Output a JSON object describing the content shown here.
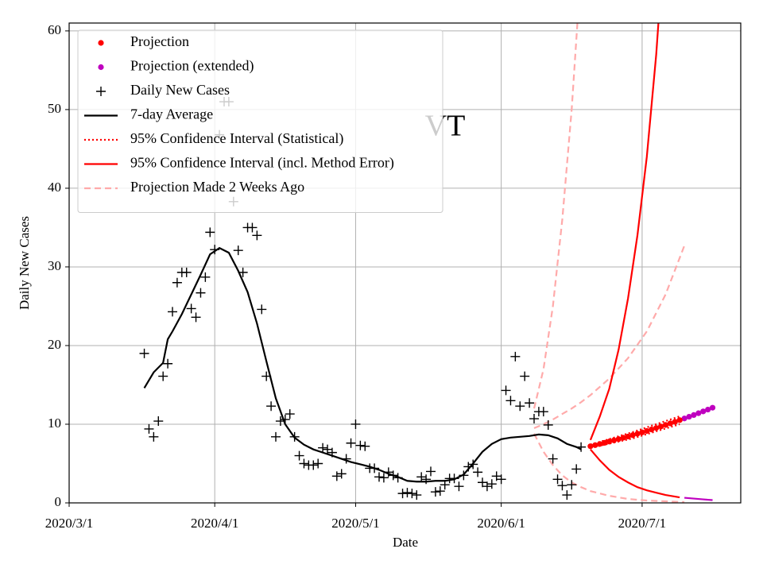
{
  "chart_data": {
    "type": "line",
    "title": "VT",
    "x_label": "Date",
    "y_label": "Daily New Cases",
    "xlim": [
      "2020-03-01",
      "2020-07-22"
    ],
    "xticks": [
      {
        "value": "2020-03-01",
        "label": "2020/3/1"
      },
      {
        "value": "2020-04-01",
        "label": "2020/4/1"
      },
      {
        "value": "2020-05-01",
        "label": "2020/5/1"
      },
      {
        "value": "2020-06-01",
        "label": "2020/6/1"
      },
      {
        "value": "2020-07-01",
        "label": "2020/7/1"
      }
    ],
    "ylim": [
      0,
      61
    ],
    "yticks": [
      0,
      10,
      20,
      30,
      40,
      50,
      60
    ],
    "grid": true,
    "legend": "upper left",
    "series": [
      {
        "name": "Projection",
        "type": "dots",
        "color": "#ff0000",
        "x": [
          "2020-06-20",
          "2020-06-21",
          "2020-06-22",
          "2020-06-23",
          "2020-06-24",
          "2020-06-25",
          "2020-06-26",
          "2020-06-27",
          "2020-06-28",
          "2020-06-29",
          "2020-06-30",
          "2020-07-01",
          "2020-07-02",
          "2020-07-03",
          "2020-07-04",
          "2020-07-05",
          "2020-07-06",
          "2020-07-07",
          "2020-07-08",
          "2020-07-09"
        ],
        "values": [
          7.2,
          7.34,
          7.49,
          7.64,
          7.8,
          7.95,
          8.11,
          8.28,
          8.44,
          8.61,
          8.79,
          8.96,
          9.14,
          9.33,
          9.52,
          9.71,
          9.91,
          10.11,
          10.31,
          10.52
        ]
      },
      {
        "name": "Projection (extended)",
        "type": "dots",
        "color": "#bf00bf",
        "x": [
          "2020-07-10",
          "2020-07-11",
          "2020-07-12",
          "2020-07-13",
          "2020-07-14",
          "2020-07-15",
          "2020-07-16"
        ],
        "values": [
          10.73,
          10.95,
          11.17,
          11.4,
          11.63,
          11.86,
          12.1
        ],
        "lower": [
          0.65,
          0.6,
          0.55,
          0.5,
          0.45,
          0.4,
          0.35
        ]
      },
      {
        "name": "Daily New Cases",
        "type": "plus",
        "color": "#000000",
        "x": [
          "2020-03-17",
          "2020-03-18",
          "2020-03-19",
          "2020-03-20",
          "2020-03-21",
          "2020-03-22",
          "2020-03-23",
          "2020-03-24",
          "2020-03-25",
          "2020-03-26",
          "2020-03-27",
          "2020-03-28",
          "2020-03-29",
          "2020-03-30",
          "2020-03-31",
          "2020-04-01",
          "2020-04-02",
          "2020-04-03",
          "2020-04-04",
          "2020-04-05",
          "2020-04-06",
          "2020-04-07",
          "2020-04-08",
          "2020-04-09",
          "2020-04-10",
          "2020-04-11",
          "2020-04-12",
          "2020-04-13",
          "2020-04-14",
          "2020-04-15",
          "2020-04-16",
          "2020-04-17",
          "2020-04-18",
          "2020-04-19",
          "2020-04-20",
          "2020-04-21",
          "2020-04-22",
          "2020-04-23",
          "2020-04-24",
          "2020-04-25",
          "2020-04-26",
          "2020-04-27",
          "2020-04-28",
          "2020-04-29",
          "2020-04-30",
          "2020-05-01",
          "2020-05-02",
          "2020-05-03",
          "2020-05-04",
          "2020-05-05",
          "2020-05-06",
          "2020-05-07",
          "2020-05-08",
          "2020-05-09",
          "2020-05-10",
          "2020-05-11",
          "2020-05-12",
          "2020-05-13",
          "2020-05-14",
          "2020-05-15",
          "2020-05-16",
          "2020-05-17",
          "2020-05-18",
          "2020-05-19",
          "2020-05-20",
          "2020-05-21",
          "2020-05-22",
          "2020-05-23",
          "2020-05-24",
          "2020-05-25",
          "2020-05-26",
          "2020-05-27",
          "2020-05-28",
          "2020-05-29",
          "2020-05-30",
          "2020-05-31",
          "2020-06-01",
          "2020-06-02",
          "2020-06-03",
          "2020-06-04",
          "2020-06-05",
          "2020-06-06",
          "2020-06-07",
          "2020-06-08",
          "2020-06-09",
          "2020-06-10",
          "2020-06-11",
          "2020-06-12",
          "2020-06-13",
          "2020-06-14",
          "2020-06-15",
          "2020-06-16",
          "2020-06-17",
          "2020-06-18"
        ],
        "values": [
          19.0,
          9.4,
          8.4,
          10.4,
          16.1,
          17.7,
          24.3,
          28.0,
          29.3,
          29.3,
          24.7,
          23.6,
          26.7,
          28.7,
          34.4,
          32.2,
          46.8,
          51.0,
          51.0,
          38.3,
          32.1,
          29.3,
          35.0,
          35.0,
          34.0,
          24.6,
          16.1,
          12.3,
          8.4,
          10.4,
          10.6,
          11.3,
          8.4,
          6.0,
          5.0,
          4.8,
          4.8,
          5.0,
          7.0,
          6.8,
          6.4,
          3.4,
          3.7,
          5.6,
          7.6,
          10.0,
          7.3,
          7.2,
          4.4,
          4.4,
          3.3,
          3.2,
          3.9,
          3.5,
          3.2,
          1.2,
          1.3,
          1.2,
          1.0,
          3.3,
          3.0,
          4.0,
          1.4,
          1.5,
          2.3,
          3.1,
          3.1,
          2.1,
          3.5,
          4.6,
          4.9,
          3.9,
          2.6,
          2.1,
          2.4,
          3.4,
          3.0,
          14.3,
          13.0,
          18.6,
          12.3,
          16.1,
          12.7,
          10.7,
          11.6,
          11.6,
          9.9,
          5.6,
          3.0,
          2.2,
          1.0,
          2.3,
          4.3,
          7.1
        ]
      },
      {
        "name": "7-day Average",
        "type": "line",
        "color": "#000000",
        "style": "solid",
        "x": [
          "2020-03-17",
          "2020-03-19",
          "2020-03-21",
          "2020-03-22",
          "2020-03-23",
          "2020-03-25",
          "2020-03-27",
          "2020-03-29",
          "2020-03-31",
          "2020-04-02",
          "2020-04-04",
          "2020-04-06",
          "2020-04-08",
          "2020-04-10",
          "2020-04-12",
          "2020-04-14",
          "2020-04-16",
          "2020-04-18",
          "2020-04-20",
          "2020-04-22",
          "2020-04-24",
          "2020-04-26",
          "2020-04-28",
          "2020-04-30",
          "2020-05-02",
          "2020-05-04",
          "2020-05-06",
          "2020-05-08",
          "2020-05-10",
          "2020-05-12",
          "2020-05-14",
          "2020-05-16",
          "2020-05-18",
          "2020-05-20",
          "2020-05-22",
          "2020-05-24",
          "2020-05-26",
          "2020-05-28",
          "2020-05-30",
          "2020-06-01",
          "2020-06-03",
          "2020-06-05",
          "2020-06-07",
          "2020-06-09",
          "2020-06-11",
          "2020-06-13",
          "2020-06-15",
          "2020-06-17",
          "2020-06-18"
        ],
        "values": [
          14.6,
          16.6,
          17.8,
          20.8,
          21.8,
          24.0,
          26.5,
          29.0,
          31.6,
          32.4,
          31.8,
          29.5,
          26.8,
          22.8,
          18.0,
          13.3,
          10.0,
          8.3,
          7.4,
          6.8,
          6.4,
          6.0,
          5.6,
          5.2,
          4.9,
          4.6,
          4.2,
          3.7,
          3.3,
          2.8,
          2.7,
          2.7,
          2.8,
          2.8,
          3.0,
          3.6,
          5.0,
          6.5,
          7.5,
          8.1,
          8.3,
          8.4,
          8.5,
          8.7,
          8.6,
          8.2,
          7.5,
          7.1,
          6.8
        ]
      },
      {
        "name": "95% Confidence Interval (Statistical)",
        "type": "band-line",
        "color": "#ff0000",
        "style": "dotted",
        "x": [
          "2020-06-20",
          "2020-06-29",
          "2020-07-09"
        ],
        "upper": [
          7.4,
          9.0,
          11.0
        ],
        "lower": [
          7.0,
          8.2,
          10.0
        ]
      },
      {
        "name": "95% Confidence Interval (incl. Method Error)",
        "type": "band-line",
        "color": "#ff0000",
        "style": "solid",
        "x": [
          "2020-06-20",
          "2020-06-22",
          "2020-06-24",
          "2020-06-26",
          "2020-06-28",
          "2020-06-30",
          "2020-07-02",
          "2020-07-04",
          "2020-07-06",
          "2020-07-09"
        ],
        "upper": [
          8.0,
          11.0,
          14.5,
          19.5,
          26,
          34,
          44,
          57,
          74,
          null
        ],
        "lower": [
          6.8,
          5.4,
          4.2,
          3.3,
          2.6,
          2.0,
          1.6,
          1.3,
          1.0,
          0.7
        ]
      },
      {
        "name": "Projection Made 2 Weeks Ago",
        "type": "band-line",
        "color": "#ffaaaa",
        "style": "dashed",
        "x": [
          "2020-06-08",
          "2020-06-10",
          "2020-06-12",
          "2020-06-14",
          "2020-06-16",
          "2020-06-18",
          "2020-06-20",
          "2020-06-24",
          "2020-06-28",
          "2020-07-02",
          "2020-07-06",
          "2020-07-10"
        ],
        "values": [
          9.5,
          10.0,
          10.6,
          11.3,
          12.0,
          12.8,
          13.7,
          15.8,
          18.4,
          21.8,
          26.5,
          32.7
        ],
        "upper": [
          12,
          17,
          25,
          36,
          50,
          68,
          null,
          null,
          null,
          null,
          null,
          null
        ],
        "lower": [
          8.8,
          6.5,
          4.8,
          3.5,
          2.6,
          2.0,
          1.5,
          0.9,
          0.5,
          0.3,
          0.2,
          0.1
        ]
      }
    ]
  }
}
